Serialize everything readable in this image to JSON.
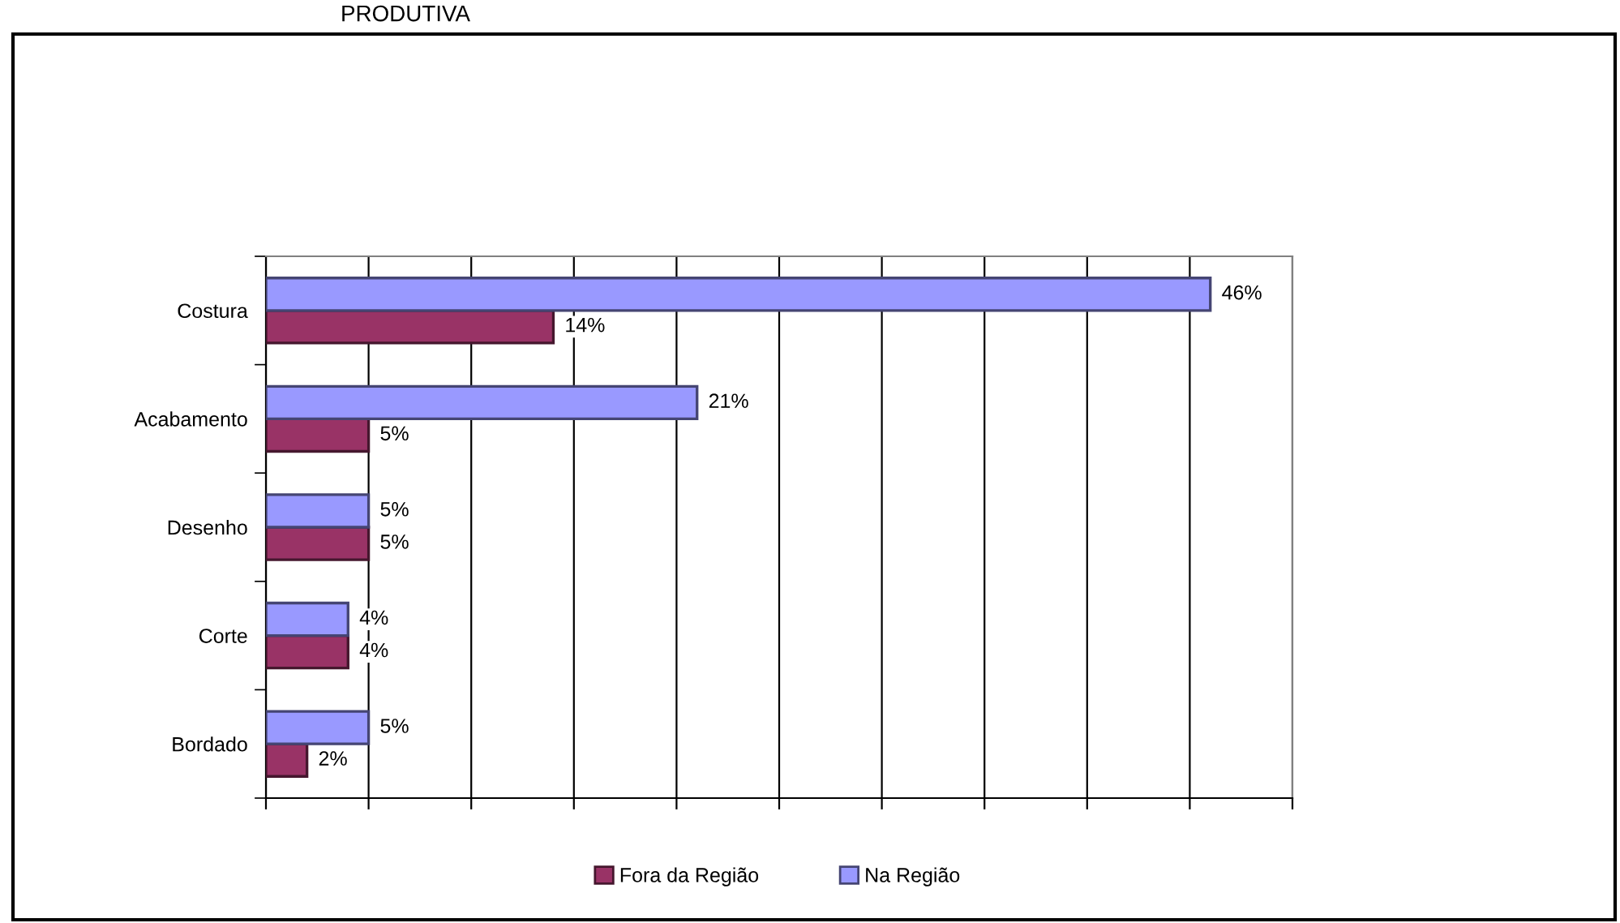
{
  "chart_data": {
    "type": "bar",
    "orientation": "horizontal",
    "title": "PRODUTIVA",
    "categories": [
      "Costura",
      "Acabamento",
      "Desenho",
      "Corte",
      "Bordado"
    ],
    "series": [
      {
        "name": "Fora da Região",
        "color": "#993366",
        "values": [
          14,
          5,
          5,
          4,
          2
        ],
        "value_labels": [
          "14%",
          "5%",
          "5%",
          "4%",
          "2%"
        ]
      },
      {
        "name": "Na Região",
        "color": "#9999ff",
        "values": [
          46,
          21,
          5,
          4,
          5
        ],
        "value_labels": [
          "46%",
          "21%",
          "5%",
          "4%",
          "5%"
        ]
      }
    ],
    "xlim": [
      0,
      50
    ],
    "xticks": [
      {
        "value": 0,
        "label": null
      },
      {
        "value": 5,
        "label": null
      },
      {
        "value": 10,
        "label": null
      },
      {
        "value": 15,
        "label": null
      },
      {
        "value": 20,
        "label": null
      },
      {
        "value": 25,
        "label": null
      },
      {
        "value": 30,
        "label": null
      },
      {
        "value": 35,
        "label": null
      },
      {
        "value": 40,
        "label": null
      },
      {
        "value": 45,
        "label": null
      },
      {
        "value": 50,
        "label": null
      }
    ],
    "grid": "x",
    "legend": "bottom",
    "tick_labels": "y"
  }
}
